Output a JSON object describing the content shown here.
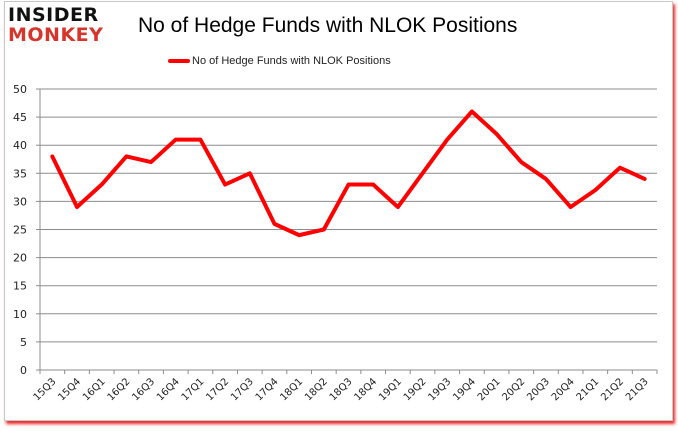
{
  "logo": {
    "line1": "INSIDER",
    "line2": "MONKEY"
  },
  "header": {
    "title": "No of Hedge Funds with NLOK Positions"
  },
  "legend": {
    "label": "No of Hedge Funds with NLOK Positions",
    "color": "#ff0000"
  },
  "chart_data": {
    "type": "line",
    "title": "No of Hedge Funds with NLOK Positions",
    "xlabel": "",
    "ylabel": "",
    "ylim": [
      0,
      50
    ],
    "yticks": [
      0,
      5,
      10,
      15,
      20,
      25,
      30,
      35,
      40,
      45,
      50
    ],
    "grid": true,
    "legend_position": "top",
    "categories": [
      "15Q3",
      "15Q4",
      "16Q1",
      "16Q2",
      "16Q3",
      "16Q4",
      "17Q1",
      "17Q2",
      "17Q3",
      "17Q4",
      "18Q1",
      "18Q2",
      "18Q3",
      "18Q4",
      "19Q1",
      "19Q2",
      "19Q3",
      "19Q4",
      "20Q1",
      "20Q2",
      "20Q3",
      "20Q4",
      "21Q1",
      "21Q2",
      "21Q3"
    ],
    "series": [
      {
        "name": "No of Hedge Funds with NLOK Positions",
        "color": "#ff0000",
        "values": [
          38,
          29,
          33,
          38,
          37,
          41,
          41,
          33,
          35,
          26,
          24,
          25,
          33,
          33,
          29,
          35,
          41,
          46,
          42,
          37,
          34,
          29,
          32,
          36,
          34
        ]
      }
    ]
  }
}
